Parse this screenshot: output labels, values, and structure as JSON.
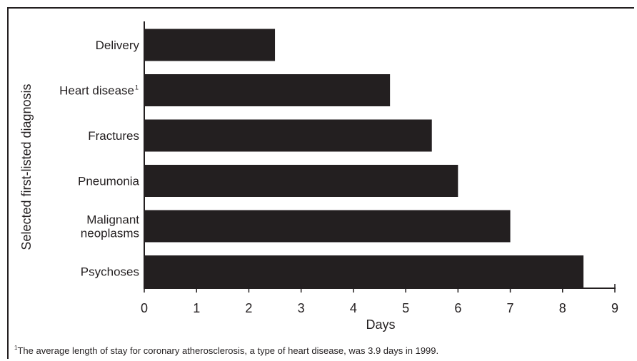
{
  "chart_data": {
    "type": "bar",
    "orientation": "horizontal",
    "categories": [
      "Delivery",
      "Heart disease",
      "Fractures",
      "Pneumonia",
      "Malignant neoplasms",
      "Psychoses"
    ],
    "category_lines": [
      [
        "Delivery"
      ],
      [
        "Heart disease"
      ],
      [
        "Fractures"
      ],
      [
        "Pneumonia"
      ],
      [
        "Malignant",
        "neoplasms"
      ],
      [
        "Psychoses"
      ]
    ],
    "category_footnote_marks": [
      "",
      "1",
      "",
      "",
      "",
      ""
    ],
    "values": [
      2.5,
      4.7,
      5.5,
      6.0,
      7.0,
      8.4
    ],
    "xlabel": "Days",
    "ylabel": "Selected first-listed diagnosis",
    "xlim": [
      0,
      9
    ],
    "xticks": [
      0,
      1,
      2,
      3,
      4,
      5,
      6,
      7,
      8,
      9
    ],
    "grid": false,
    "bar_color": "#231f20"
  },
  "footnote": {
    "mark": "1",
    "text": "The average length of stay for coronary atherosclerosis, a type of heart disease, was 3.9 days in 1999."
  }
}
